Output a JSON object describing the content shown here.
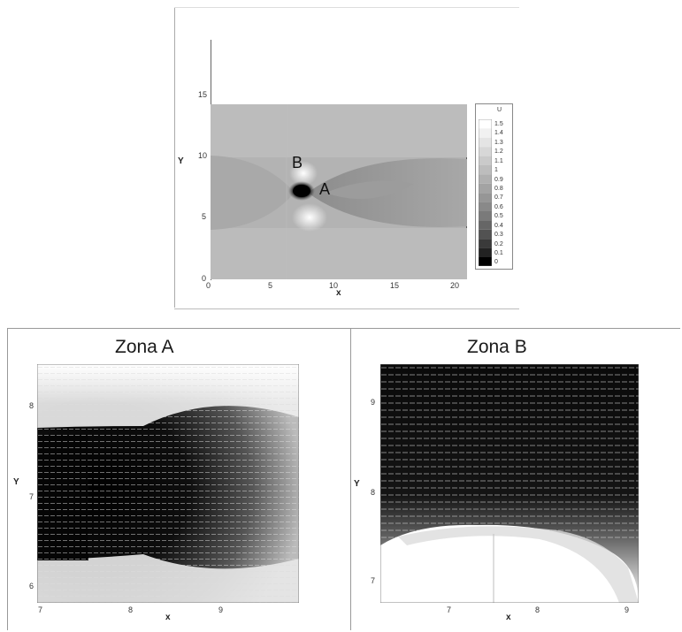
{
  "top_plot": {
    "xlabel": "x",
    "ylabel": "Y",
    "x_ticks": [
      "0",
      "5",
      "10",
      "15",
      "20"
    ],
    "y_ticks": [
      "0",
      "5",
      "10",
      "15"
    ],
    "point_a": "A",
    "point_b": "B",
    "legend": {
      "title": "U",
      "levels": [
        "1.5",
        "1.4",
        "1.3",
        "1.2",
        "1.1",
        "1",
        "0.9",
        "0.8",
        "0.7",
        "0.6",
        "0.5",
        "0.4",
        "0.3",
        "0.2",
        "0.1",
        "0"
      ]
    }
  },
  "zona_a": {
    "title": "Zona A",
    "xlabel": "x",
    "ylabel": "Y",
    "x_ticks": [
      "7",
      "8",
      "9"
    ],
    "y_ticks": [
      "8",
      "7",
      "6"
    ]
  },
  "zona_b": {
    "title": "Zona B",
    "xlabel": "x",
    "ylabel": "Y",
    "x_ticks": [
      "7",
      "8",
      "9"
    ],
    "y_ticks": [
      "9",
      "8",
      "7"
    ]
  },
  "colors": {
    "contour_light": "#ffffff",
    "contour_dark": "#000000",
    "field_gray": "#b4b4b4"
  }
}
